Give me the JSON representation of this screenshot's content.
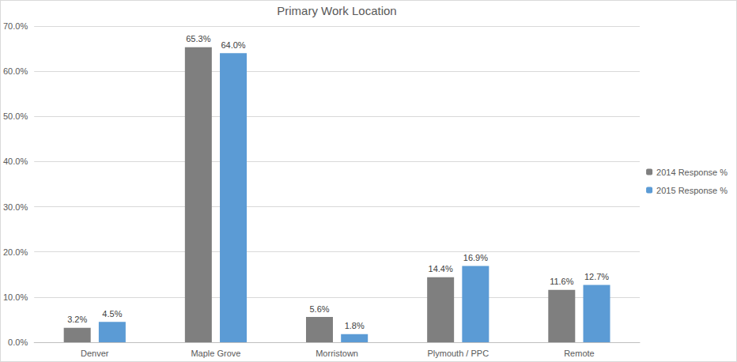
{
  "chart_data": {
    "type": "bar",
    "title": "Primary Work Location",
    "categories": [
      "Denver",
      "Maple Grove",
      "Morristown",
      "Plymouth / PPC",
      "Remote"
    ],
    "series": [
      {
        "name": "2014 Response %",
        "color": "#7f7f7f",
        "values": [
          3.2,
          65.3,
          5.6,
          14.4,
          11.6
        ],
        "value_labels": [
          "3.2%",
          "65.3%",
          "5.6%",
          "14.4%",
          "11.6%"
        ]
      },
      {
        "name": "2015 Response %",
        "color": "#5b9bd5",
        "values": [
          4.5,
          64.0,
          1.8,
          16.9,
          12.7
        ],
        "value_labels": [
          "4.5%",
          "64.0%",
          "1.8%",
          "16.9%",
          "12.7%"
        ]
      }
    ],
    "ylim": [
      0,
      70
    ],
    "yticks": [
      {
        "value": 0,
        "label": "0.0%"
      },
      {
        "value": 10,
        "label": "10.0%"
      },
      {
        "value": 20,
        "label": "20.0%"
      },
      {
        "value": 30,
        "label": "30.0%"
      },
      {
        "value": 40,
        "label": "40.0%"
      },
      {
        "value": 50,
        "label": "50.0%"
      },
      {
        "value": 60,
        "label": "60.0%"
      },
      {
        "value": 70,
        "label": "70.0%"
      }
    ],
    "grid": true,
    "legend": "right",
    "data_labels": true
  }
}
